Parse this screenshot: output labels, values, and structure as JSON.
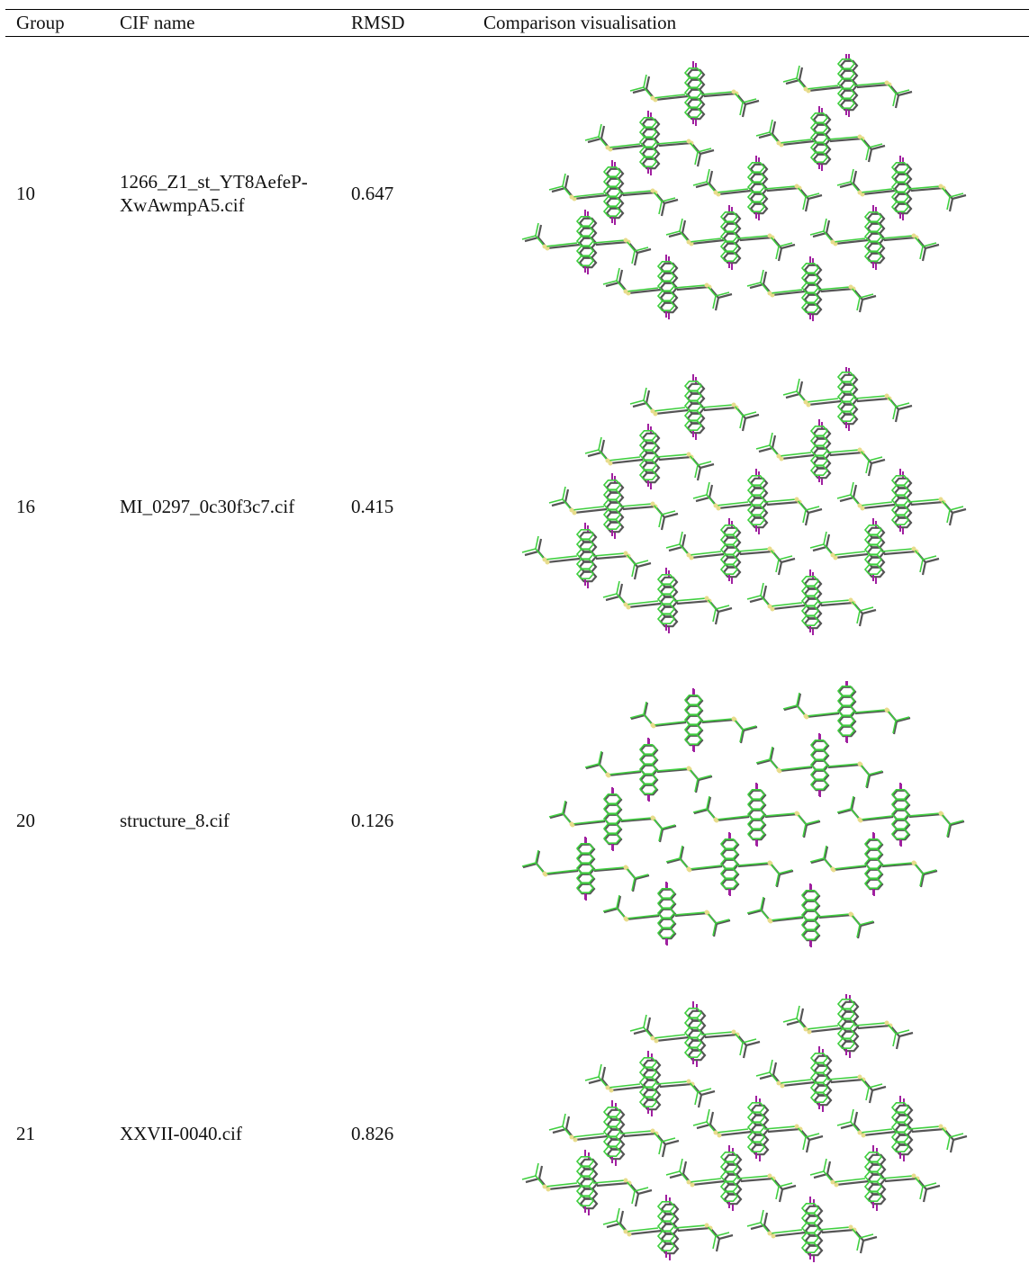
{
  "table": {
    "header": [
      "Group",
      "CIF name",
      "RMSD",
      "Comparison visualisation"
    ],
    "rows": [
      [
        "10",
        "1266_Z1_st_YT8AefeP-XwAwmpA5.cif",
        "0.647"
      ],
      [
        "16",
        "MI_0297_0c30f3c7.cif",
        "0.415"
      ],
      [
        "20",
        "structure_8.cif",
        "0.126"
      ],
      [
        "21",
        "XXVII-0040.cif",
        "0.826"
      ]
    ]
  }
}
